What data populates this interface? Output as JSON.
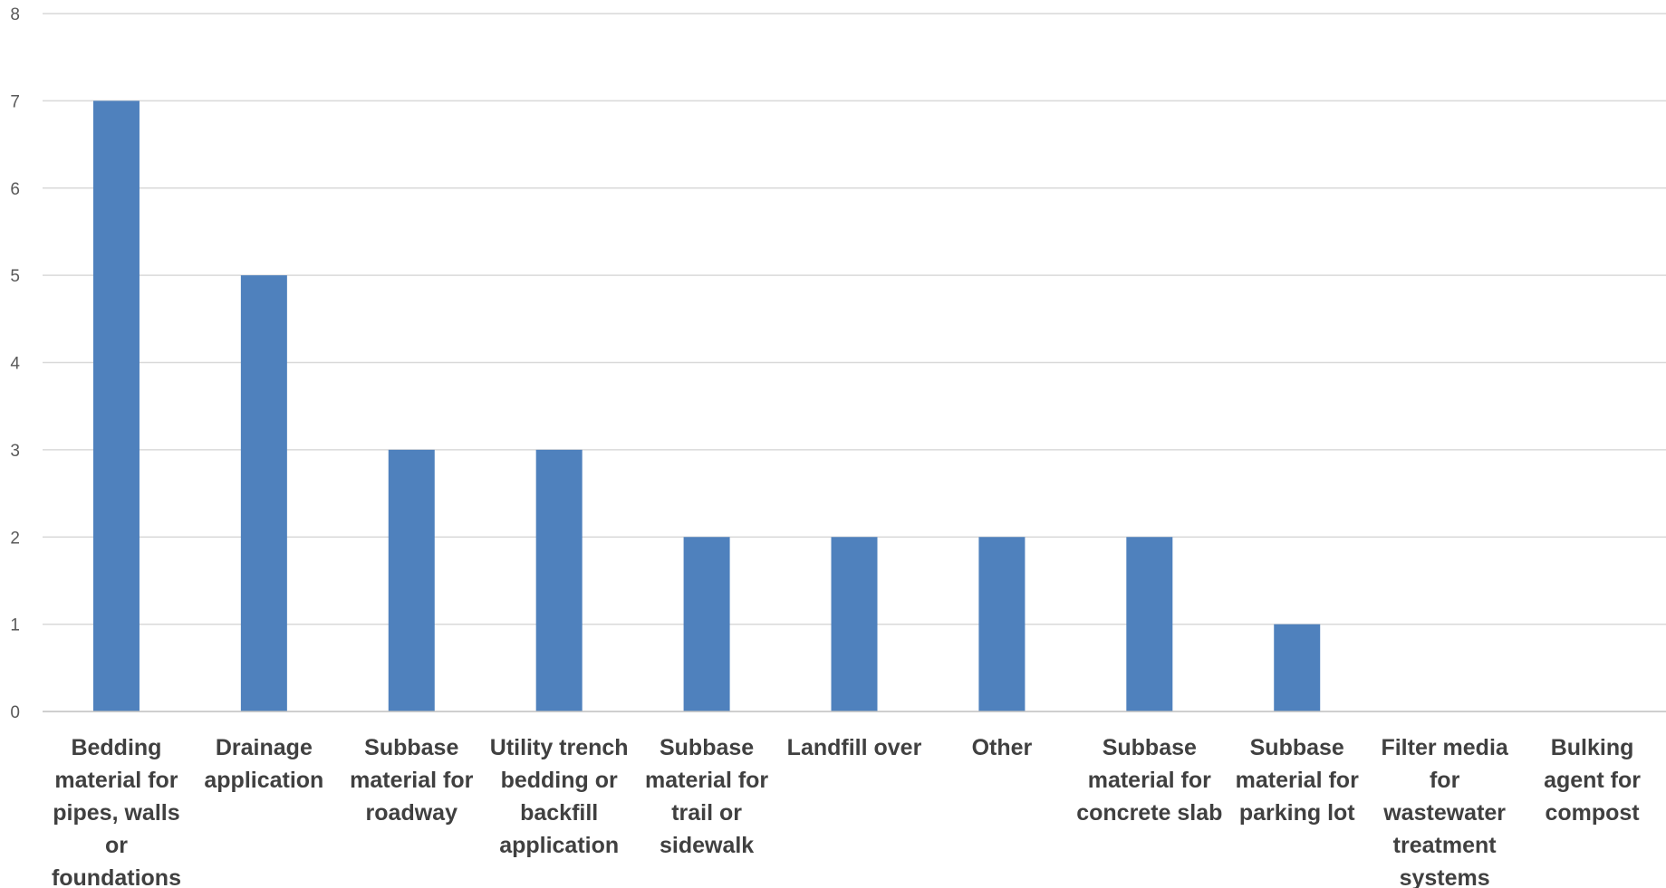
{
  "chart_data": {
    "type": "bar",
    "categories": [
      [
        "Bedding",
        "material for",
        "pipes, walls",
        "or",
        "foundations"
      ],
      [
        "Drainage",
        "application"
      ],
      [
        "Subbase",
        "material for",
        "roadway"
      ],
      [
        "Utility trench",
        "bedding or",
        "backfill",
        "application"
      ],
      [
        "Subbase",
        "material for",
        "trail or",
        "sidewalk"
      ],
      [
        "Landfill over"
      ],
      [
        "Other"
      ],
      [
        "Subbase",
        "material for",
        "concrete slab"
      ],
      [
        "Subbase",
        "material for",
        "parking lot"
      ],
      [
        "Filter media",
        "for",
        "wastewater",
        "treatment",
        "systems"
      ],
      [
        "Bulking",
        "agent for",
        "compost"
      ]
    ],
    "values": [
      7,
      5,
      3,
      3,
      2,
      2,
      2,
      2,
      1,
      0,
      0
    ],
    "title": "",
    "xlabel": "",
    "ylabel": "",
    "ylim": [
      0,
      8
    ],
    "yticks": [
      0,
      1,
      2,
      3,
      4,
      5,
      6,
      7,
      8
    ],
    "grid": true,
    "legend": "none",
    "bar_color": "#4f81bd"
  }
}
